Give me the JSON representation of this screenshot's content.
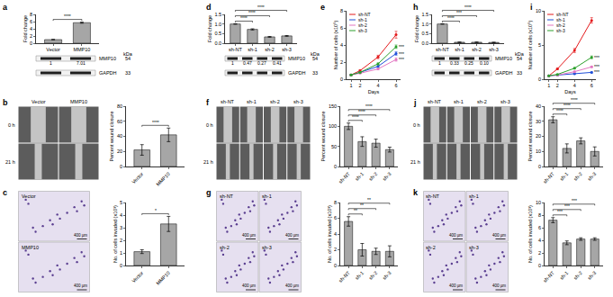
{
  "panel_labels": [
    "a",
    "b",
    "c",
    "d",
    "e",
    "f",
    "g",
    "h",
    "i",
    "j",
    "k"
  ],
  "chart_data": [
    {
      "type": "bar",
      "categories": [
        "Vector",
        "MMP10"
      ],
      "values": [
        1,
        5.7
      ],
      "errors": [
        0.05,
        0.15
      ],
      "ylabel": "Fold change",
      "ylim": [
        0,
        8
      ],
      "yticks": [
        0,
        2,
        4,
        6,
        8
      ],
      "color": "#a6a6a6",
      "annotations": [
        {
          "text": "****",
          "between": [
            "Vector",
            "MMP10"
          ]
        }
      ]
    },
    {
      "type": "bar",
      "categories": [
        "Vector",
        "MMP10"
      ],
      "values": [
        22,
        42
      ],
      "errors": [
        7,
        9
      ],
      "ylabel": "Percent wound closure",
      "ylim": [
        0,
        80
      ],
      "yticks": [
        0,
        20,
        40,
        60,
        80
      ],
      "color": "#a6a6a6",
      "annotations": [
        {
          "text": "****",
          "between": [
            "Vector",
            "MMP10"
          ]
        }
      ]
    },
    {
      "type": "bar",
      "categories": [
        "Vector",
        "MMP10"
      ],
      "values": [
        1.1,
        3.3
      ],
      "errors": [
        0.15,
        0.6
      ],
      "ylabel": "No. of cells invaded (x10³)",
      "ylim": [
        0,
        5
      ],
      "yticks": [
        0,
        1,
        2,
        3,
        4,
        5
      ],
      "color": "#a6a6a6",
      "annotations": [
        {
          "text": "*",
          "between": [
            "Vector",
            "MMP10"
          ]
        }
      ]
    },
    {
      "type": "bar",
      "categories": [
        "sh-NT",
        "sh-1",
        "sh-2",
        "sh-3"
      ],
      "values": [
        1,
        0.72,
        0.33,
        0.38
      ],
      "errors": [
        0.01,
        0.03,
        0.02,
        0.02
      ],
      "ylabel": "Fold change",
      "ylim": [
        0,
        1.5
      ],
      "yticks": [
        {
          "value": 0,
          "label": "0.0"
        },
        0.5,
        {
          "value": 1,
          "label": "1.0"
        },
        1.5
      ],
      "color": "#a6a6a6",
      "annotations": [
        {
          "text": "****",
          "between": [
            "sh-NT",
            "sh-1"
          ]
        },
        {
          "text": "****",
          "between": [
            "sh-NT",
            "sh-2"
          ]
        },
        {
          "text": "****",
          "between": [
            "sh-NT",
            "sh-3"
          ]
        }
      ]
    },
    {
      "type": "line",
      "x": [
        1,
        2,
        4,
        6
      ],
      "xlabel": "Days",
      "ylabel": "Number of cells (x10⁵)",
      "xlim": [
        0.5,
        6.5
      ],
      "xticks": [
        1,
        2,
        4,
        6
      ],
      "ylim": [
        0,
        8
      ],
      "yticks": [
        0,
        2,
        4,
        6,
        8
      ],
      "legend": "upper left",
      "marker": "circle",
      "series": [
        {
          "name": "sh-NT",
          "color": "#e41a1c",
          "values": [
            0.5,
            1.0,
            2.6,
            5.2
          ],
          "errors": [
            0.05,
            0.1,
            0.2,
            0.4
          ]
        },
        {
          "name": "sh-1",
          "color": "#1f4fd8",
          "values": [
            0.5,
            0.8,
            1.5,
            3.0
          ],
          "errors": [
            0.05,
            0.05,
            0.1,
            0.2
          ]
        },
        {
          "name": "sh-2",
          "color": "#e377c2",
          "values": [
            0.5,
            0.7,
            1.2,
            2.3
          ],
          "errors": [
            0.05,
            0.05,
            0.1,
            0.2
          ]
        },
        {
          "name": "sh-3",
          "color": "#2ca02c",
          "values": [
            0.5,
            0.8,
            1.8,
            3.8
          ],
          "errors": [
            0.05,
            0.05,
            0.1,
            0.2
          ]
        }
      ],
      "annotations": [
        {
          "text": "***",
          "series": "sh-1"
        },
        {
          "text": "***",
          "series": "sh-2"
        },
        {
          "text": "***",
          "series": "sh-3"
        }
      ]
    },
    {
      "type": "bar",
      "categories": [
        "sh-NT",
        "sh-1",
        "sh-2",
        "sh-3"
      ],
      "values": [
        100,
        62,
        58,
        42
      ],
      "errors": [
        8,
        12,
        10,
        6
      ],
      "ylabel": "Percent wound closure",
      "ylim": [
        0,
        150
      ],
      "yticks": [
        0,
        50,
        100,
        150
      ],
      "color": "#a6a6a6",
      "annotations": [
        {
          "text": "****",
          "between": [
            "sh-NT",
            "sh-1"
          ]
        },
        {
          "text": "****",
          "between": [
            "sh-NT",
            "sh-2"
          ]
        },
        {
          "text": "****",
          "between": [
            "sh-NT",
            "sh-3"
          ]
        }
      ]
    },
    {
      "type": "bar",
      "categories": [
        "sh-NT",
        "sh-1",
        "sh-2",
        "sh-3"
      ],
      "values": [
        5.6,
        2.0,
        1.8,
        1.8
      ],
      "errors": [
        0.6,
        0.8,
        0.4,
        0.7
      ],
      "ylabel": "No. of cells invaded (x10³)",
      "ylim": [
        0,
        8
      ],
      "yticks": [
        0,
        2,
        4,
        6,
        8
      ],
      "color": "#a6a6a6",
      "annotations": [
        {
          "text": "**",
          "between": [
            "sh-NT",
            "sh-1"
          ]
        },
        {
          "text": "**",
          "between": [
            "sh-NT",
            "sh-2"
          ]
        },
        {
          "text": "**",
          "between": [
            "sh-NT",
            "sh-3"
          ]
        }
      ]
    },
    {
      "type": "bar",
      "categories": [
        "sh-NT",
        "sh-1",
        "sh-2",
        "sh-3"
      ],
      "values": [
        1,
        0.05,
        0.05,
        0.04
      ],
      "errors": [
        0.01,
        0.01,
        0.01,
        0.01
      ],
      "ylabel": "Fold change",
      "ylim": [
        0,
        1.5
      ],
      "yticks": [
        {
          "value": 0,
          "label": "0.0"
        },
        0.5,
        {
          "value": 1,
          "label": "1.0"
        },
        1.5
      ],
      "color": "#a6a6a6",
      "annotations": [
        {
          "text": "****",
          "between": [
            "sh-NT",
            "sh-1"
          ]
        },
        {
          "text": "***",
          "between": [
            "sh-NT",
            "sh-2"
          ]
        },
        {
          "text": "****",
          "between": [
            "sh-NT",
            "sh-3"
          ]
        }
      ]
    },
    {
      "type": "line",
      "x": [
        1,
        2,
        4,
        6
      ],
      "xlabel": "Days",
      "ylabel": "Number of cells (x10⁵)",
      "xlim": [
        0.5,
        6.5
      ],
      "xticks": [
        1,
        2,
        4,
        6
      ],
      "ylim": [
        0,
        10
      ],
      "yticks": [
        0,
        5,
        10
      ],
      "legend": "upper left",
      "marker": "circle",
      "series": [
        {
          "name": "sh-NT",
          "color": "#e41a1c",
          "values": [
            0.5,
            1.5,
            4.2,
            8.6
          ],
          "errors": [
            0.05,
            0.1,
            0.3,
            0.4
          ]
        },
        {
          "name": "sh-1",
          "color": "#1f4fd8",
          "values": [
            0.5,
            0.6,
            0.8,
            1.0
          ],
          "errors": [
            0.05,
            0.05,
            0.05,
            0.1
          ]
        },
        {
          "name": "sh-2",
          "color": "#e377c2",
          "values": [
            0.5,
            0.6,
            1.1,
            1.8
          ],
          "errors": [
            0.05,
            0.05,
            0.1,
            0.1
          ]
        },
        {
          "name": "sh-3",
          "color": "#2ca02c",
          "values": [
            0.5,
            0.7,
            1.6,
            3.2
          ],
          "errors": [
            0.05,
            0.05,
            0.1,
            0.2
          ]
        }
      ],
      "annotations": [
        {
          "text": "***",
          "series": "sh-1"
        },
        {
          "text": "***",
          "series": "sh-2"
        },
        {
          "text": "***",
          "series": "sh-3"
        }
      ]
    },
    {
      "type": "bar",
      "categories": [
        "sh-NT",
        "sh-1",
        "sh-2",
        "sh-3"
      ],
      "values": [
        31,
        12,
        17,
        10
      ],
      "errors": [
        2,
        3,
        2,
        3
      ],
      "ylabel": "Percent wound closure",
      "ylim": [
        0,
        40
      ],
      "yticks": [
        0,
        10,
        20,
        30,
        40
      ],
      "color": "#a6a6a6",
      "annotations": [
        {
          "text": "****",
          "between": [
            "sh-NT",
            "sh-1"
          ]
        },
        {
          "text": "****",
          "between": [
            "sh-NT",
            "sh-2"
          ]
        },
        {
          "text": "****",
          "between": [
            "sh-NT",
            "sh-3"
          ]
        }
      ]
    },
    {
      "type": "bar",
      "categories": [
        "sh-NT",
        "sh-1",
        "sh-2",
        "sh-3"
      ],
      "values": [
        7.2,
        3.6,
        4.2,
        4.2
      ],
      "errors": [
        0.4,
        0.3,
        0.2,
        0.2
      ],
      "ylabel": "No. of cells invaded (x10³)",
      "ylim": [
        0,
        10
      ],
      "yticks": [
        0,
        2,
        4,
        6,
        8,
        10
      ],
      "color": "#a6a6a6",
      "annotations": [
        {
          "text": "***",
          "between": [
            "sh-NT",
            "sh-1"
          ]
        },
        {
          "text": "***",
          "between": [
            "sh-NT",
            "sh-2"
          ]
        },
        {
          "text": "***",
          "between": [
            "sh-NT",
            "sh-3"
          ]
        }
      ]
    }
  ],
  "blots": [
    {
      "unit": "kDa",
      "rows": [
        {
          "label": "MMP10",
          "kda": 54
        },
        {
          "label": "GAPDH",
          "kda": 33
        }
      ],
      "quant": [
        "1",
        "7.01"
      ]
    },
    {
      "unit": "kDa",
      "rows": [
        {
          "label": "MMP10",
          "kda": 54
        },
        {
          "label": "GAPDH",
          "kda": 33
        }
      ],
      "quant": [
        "1",
        "0.47",
        "0.27",
        "0.41"
      ]
    },
    {
      "unit": "kDa",
      "rows": [
        {
          "label": "MMP10",
          "kda": 54
        },
        {
          "label": "GAPDH",
          "kda": 33
        }
      ],
      "quant": [
        "1",
        "0.33",
        "0.25",
        "0.10"
      ]
    }
  ],
  "images": [
    {
      "kind": "wound",
      "row_labels": [
        "0 h",
        "21 h"
      ],
      "col_labels": [
        "Vector",
        "MMP10"
      ]
    },
    {
      "kind": "invasion",
      "labels": [
        "Vector",
        "MMP10"
      ],
      "scale_bar": "400 µm"
    },
    {
      "kind": "wound",
      "row_labels": [
        "0 h",
        "21 h"
      ],
      "col_labels": [
        "sh-NT",
        "sh-1",
        "sh-2",
        "sh-3"
      ]
    },
    {
      "kind": "invasion",
      "labels": [
        "sh-NT",
        "sh-1",
        "sh-2",
        "sh-3"
      ],
      "scale_bar": "400 µm"
    },
    {
      "kind": "wound",
      "row_labels": [
        "0 h",
        "21 h"
      ],
      "col_labels": [
        "sh-NT",
        "sh-1",
        "sh-2",
        "sh-3"
      ]
    },
    {
      "kind": "invasion",
      "labels": [
        "sh-NT",
        "sh-1",
        "sh-2",
        "sh-3"
      ],
      "scale_bar": "400 µm"
    }
  ]
}
